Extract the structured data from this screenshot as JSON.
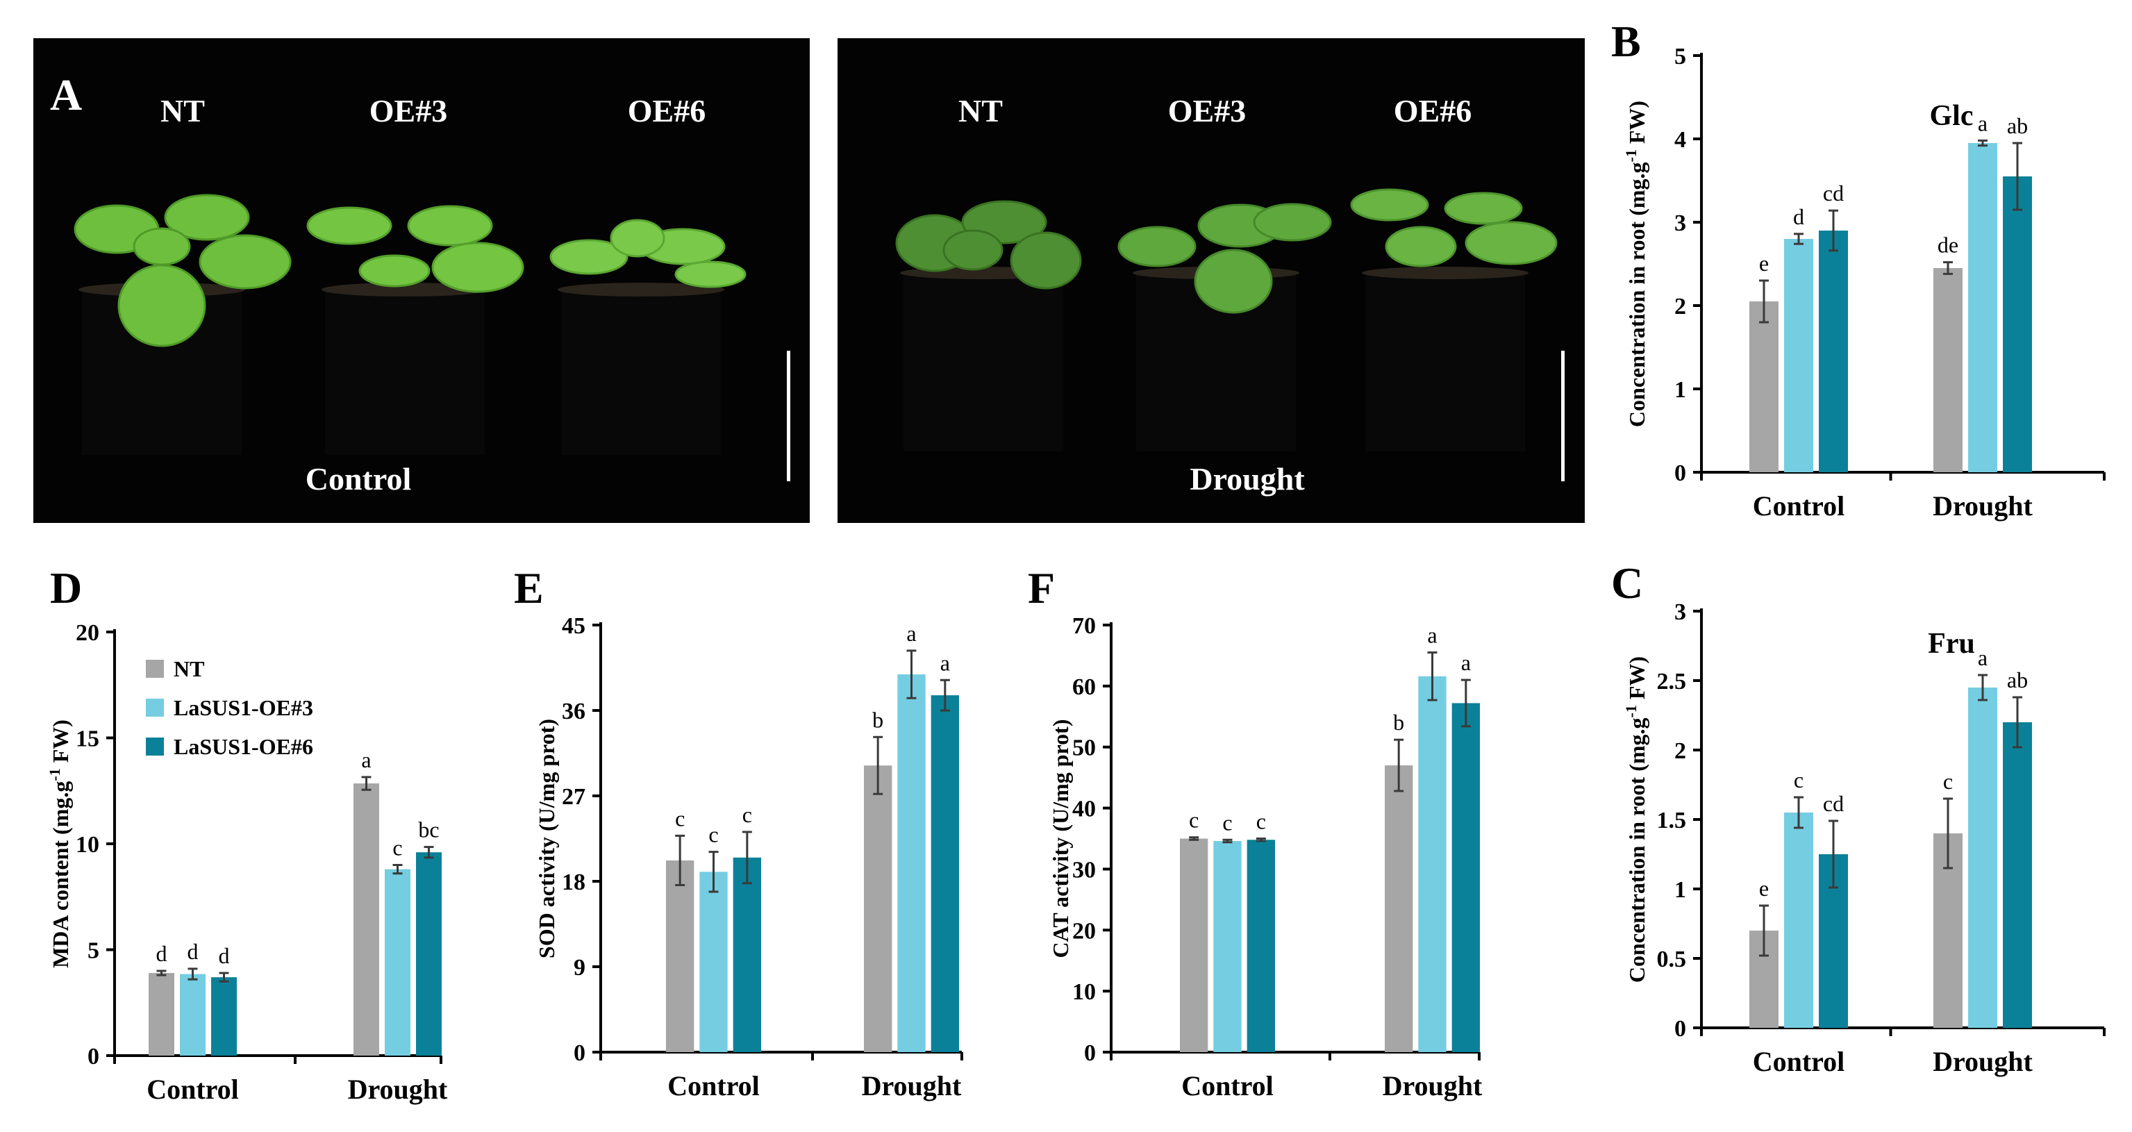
{
  "panel_a": {
    "letter": "A",
    "control_photo": {
      "labels": [
        "NT",
        "OE#3",
        "OE#6"
      ],
      "condition": "Control"
    },
    "drought_photo": {
      "labels": [
        "NT",
        "OE#3",
        "OE#6"
      ],
      "condition": "Drought"
    }
  },
  "colors": {
    "NT": "#a6a6a6",
    "OE3": "#75cde2",
    "OE6": "#0b8199",
    "errorbar": "#3a3a3a"
  },
  "legend": [
    "NT",
    "LaSUS1-OE#3",
    "LaSUS1-OE#6"
  ],
  "chart_data": [
    {
      "id": "B",
      "type": "bar",
      "panel": "B",
      "title": "Glc",
      "ylabel": "Concentration in root (mg.g-1 FW)",
      "categories": [
        "Control",
        "Drought"
      ],
      "ylim": [
        0,
        5
      ],
      "yticks": [
        0,
        1,
        2,
        3,
        4,
        5
      ],
      "ytick_labels": [
        "0",
        "1",
        "2",
        "3",
        "4",
        "5"
      ],
      "series": [
        {
          "name": "NT",
          "values": [
            2.05,
            2.45
          ],
          "errors": [
            0.25,
            0.07
          ],
          "letters": [
            "e",
            "de"
          ]
        },
        {
          "name": "LaSUS1-OE#3",
          "values": [
            2.8,
            3.95
          ],
          "errors": [
            0.06,
            0.03
          ],
          "letters": [
            "d",
            "a"
          ]
        },
        {
          "name": "LaSUS1-OE#6",
          "values": [
            2.9,
            3.55
          ],
          "errors": [
            0.24,
            0.4
          ],
          "letters": [
            "cd",
            "ab"
          ]
        }
      ]
    },
    {
      "id": "C",
      "type": "bar",
      "panel": "C",
      "title": "Fru",
      "ylabel": "Concentration in root (mg.g-1 FW)",
      "categories": [
        "Control",
        "Drought"
      ],
      "ylim": [
        0,
        3
      ],
      "yticks": [
        0,
        0.5,
        1,
        1.5,
        2,
        2.5,
        3
      ],
      "ytick_labels": [
        "0",
        "0.5",
        "1",
        "1.5",
        "2",
        "2.5",
        "3"
      ],
      "series": [
        {
          "name": "NT",
          "values": [
            0.7,
            1.4
          ],
          "errors": [
            0.18,
            0.25
          ],
          "letters": [
            "e",
            "c"
          ]
        },
        {
          "name": "LaSUS1-OE#3",
          "values": [
            1.55,
            2.45
          ],
          "errors": [
            0.11,
            0.09
          ],
          "letters": [
            "c",
            "a"
          ]
        },
        {
          "name": "LaSUS1-OE#6",
          "values": [
            1.25,
            2.2
          ],
          "errors": [
            0.24,
            0.18
          ],
          "letters": [
            "cd",
            "ab"
          ]
        }
      ]
    },
    {
      "id": "D",
      "type": "bar",
      "panel": "D",
      "title": "",
      "ylabel": "MDA content (mg.g-1 FW)",
      "categories": [
        "Control",
        "Drought"
      ],
      "ylim": [
        0,
        20
      ],
      "yticks": [
        0,
        5,
        10,
        15,
        20
      ],
      "ytick_labels": [
        "0",
        "5",
        "10",
        "15",
        "20"
      ],
      "series": [
        {
          "name": "NT",
          "values": [
            3.9,
            12.85
          ],
          "errors": [
            0.1,
            0.3
          ],
          "letters": [
            "d",
            "a"
          ]
        },
        {
          "name": "LaSUS1-OE#3",
          "values": [
            3.85,
            8.8
          ],
          "errors": [
            0.25,
            0.2
          ],
          "letters": [
            "d",
            "c"
          ]
        },
        {
          "name": "LaSUS1-OE#6",
          "values": [
            3.7,
            9.6
          ],
          "errors": [
            0.2,
            0.25
          ],
          "letters": [
            "d",
            "bc"
          ]
        }
      ]
    },
    {
      "id": "E",
      "type": "bar",
      "panel": "E",
      "title": "",
      "ylabel": "SOD activity (U/mg prot)",
      "categories": [
        "Control",
        "Drought"
      ],
      "ylim": [
        0,
        45
      ],
      "yticks": [
        0,
        9,
        18,
        27,
        36,
        45
      ],
      "ytick_labels": [
        "0",
        "9",
        "18",
        "27",
        "36",
        "45"
      ],
      "series": [
        {
          "name": "NT",
          "values": [
            20.2,
            30.2
          ],
          "errors": [
            2.6,
            3.0
          ],
          "letters": [
            "c",
            "b"
          ]
        },
        {
          "name": "LaSUS1-OE#3",
          "values": [
            19.0,
            39.8
          ],
          "errors": [
            2.1,
            2.5
          ],
          "letters": [
            "c",
            "a"
          ]
        },
        {
          "name": "LaSUS1-OE#6",
          "values": [
            20.5,
            37.6
          ],
          "errors": [
            2.7,
            1.6
          ],
          "letters": [
            "c",
            "a"
          ]
        }
      ]
    },
    {
      "id": "F",
      "type": "bar",
      "panel": "F",
      "title": "",
      "ylabel": "CAT activity (U/mg prot)",
      "categories": [
        "Control",
        "Drought"
      ],
      "ylim": [
        0,
        70
      ],
      "yticks": [
        0,
        10,
        20,
        30,
        40,
        50,
        60,
        70
      ],
      "ytick_labels": [
        "0",
        "10",
        "20",
        "30",
        "40",
        "50",
        "60",
        "70"
      ],
      "series": [
        {
          "name": "NT",
          "values": [
            35.0,
            47.0
          ],
          "errors": [
            0.2,
            4.2
          ],
          "letters": [
            "c",
            "b"
          ]
        },
        {
          "name": "LaSUS1-OE#3",
          "values": [
            34.6,
            61.6
          ],
          "errors": [
            0.2,
            3.9
          ],
          "letters": [
            "c",
            "a"
          ]
        },
        {
          "name": "LaSUS1-OE#6",
          "values": [
            34.8,
            57.2
          ],
          "errors": [
            0.2,
            3.8
          ],
          "letters": [
            "c",
            "a"
          ]
        }
      ]
    }
  ]
}
